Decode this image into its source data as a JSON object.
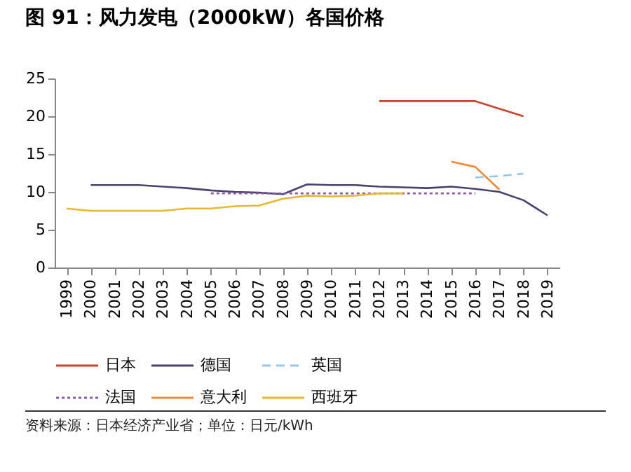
{
  "chart_data": {
    "type": "line",
    "title": "图 91：风力发电（2000kW）各国价格",
    "categories": [
      "1999",
      "2000",
      "2001",
      "2002",
      "2003",
      "2004",
      "2005",
      "2006",
      "2007",
      "2008",
      "2009",
      "2010",
      "2011",
      "2012",
      "2013",
      "2014",
      "2015",
      "2016",
      "2017",
      "2018",
      "2019"
    ],
    "series": [
      {
        "name": "日本",
        "color": "#c8442a",
        "line_style": "solid",
        "values": [
          null,
          null,
          null,
          null,
          null,
          null,
          null,
          null,
          null,
          null,
          null,
          null,
          null,
          22,
          22,
          22,
          22,
          22,
          21,
          20,
          null
        ]
      },
      {
        "name": "德国",
        "color": "#4b4170",
        "line_style": "solid",
        "values": [
          null,
          10.9,
          10.9,
          10.9,
          10.7,
          10.5,
          10.2,
          10.0,
          9.9,
          9.7,
          11.0,
          10.9,
          10.9,
          10.7,
          10.6,
          10.5,
          10.7,
          10.4,
          10.0,
          8.9,
          6.9
        ]
      },
      {
        "name": "英国",
        "color": "#9ac6e2",
        "line_style": "dashed",
        "values": [
          null,
          null,
          null,
          null,
          null,
          null,
          null,
          null,
          null,
          null,
          null,
          null,
          null,
          null,
          null,
          null,
          null,
          11.9,
          12.1,
          12.4,
          null
        ]
      },
      {
        "name": "法国",
        "color": "#8a5c9e",
        "line_style": "dotted",
        "values": [
          null,
          null,
          null,
          null,
          null,
          null,
          9.8,
          9.8,
          9.8,
          9.8,
          9.8,
          9.8,
          9.8,
          9.8,
          9.8,
          9.8,
          9.8,
          9.8,
          null,
          null,
          null
        ]
      },
      {
        "name": "意大利",
        "color": "#f0883a",
        "line_style": "solid",
        "values": [
          null,
          null,
          null,
          null,
          null,
          null,
          null,
          null,
          null,
          null,
          null,
          null,
          null,
          null,
          null,
          null,
          14.0,
          13.3,
          10.3,
          null,
          null
        ]
      },
      {
        "name": "西班牙",
        "color": "#e8b830",
        "line_style": "solid",
        "values": [
          7.8,
          7.5,
          7.5,
          7.5,
          7.5,
          7.8,
          7.8,
          8.1,
          8.2,
          9.1,
          9.5,
          9.4,
          9.5,
          9.8,
          9.8,
          null,
          null,
          null,
          null,
          null,
          null
        ]
      }
    ],
    "ylim": [
      0,
      25
    ],
    "yticks": [
      0,
      5,
      10,
      15,
      20,
      25
    ],
    "grid": false,
    "legend": "bottom",
    "annotations": [
      "资料来源：日本经济产业省；单位：日元/kWh"
    ]
  }
}
